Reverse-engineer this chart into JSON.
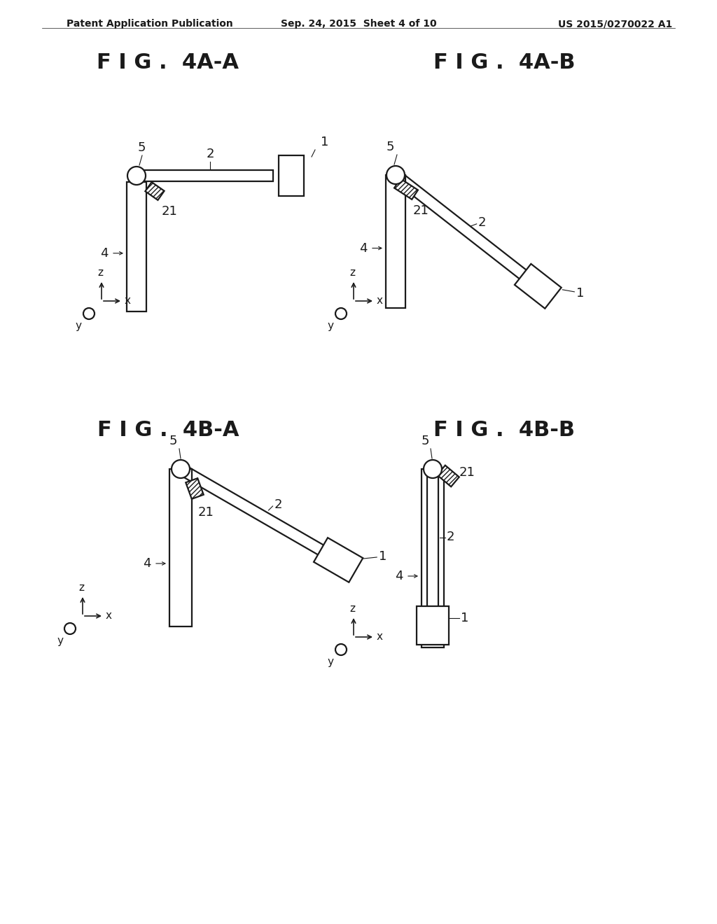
{
  "bg_color": "#ffffff",
  "line_color": "#1a1a1a",
  "line_width": 1.6,
  "header_left": "Patent Application Publication",
  "header_center": "Sep. 24, 2015  Sheet 4 of 10",
  "header_right": "US 2015/0270022 A1",
  "fig_titles": [
    "F I G .  4A-A",
    "F I G .  4A-B",
    "F I G .  4B-A",
    "F I G .  4B-B"
  ],
  "fig_title_fontsize": 22,
  "label_fontsize": 13,
  "header_fontsize": 10,
  "axis_label_fontsize": 11
}
